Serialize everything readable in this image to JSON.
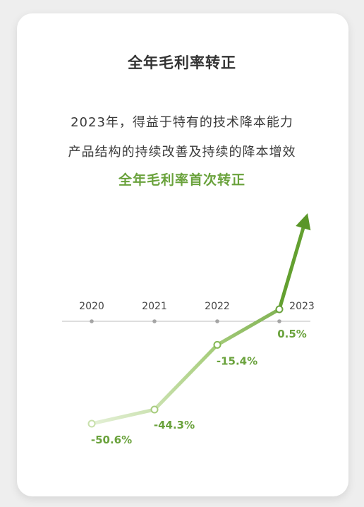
{
  "header": {
    "title": "全年毛利率转正",
    "line1": "2023年，得益于特有的技术降本能力",
    "line2": "产品结构的持续改善及持续的降本增效",
    "highlight": "全年毛利率首次转正"
  },
  "colors": {
    "accent": "#6aa23c",
    "line_light": "#dcebc8",
    "text": "#333333"
  },
  "chart_data": {
    "type": "line",
    "categories": [
      "2020",
      "2021",
      "2022",
      "2023"
    ],
    "values": [
      -50.6,
      -44.3,
      -15.4,
      0.5
    ],
    "value_labels": [
      "-50.6%",
      "-44.3%",
      "-15.4%",
      "0.5%"
    ],
    "title": "",
    "xlabel": "",
    "ylabel": "",
    "ylim": [
      -50.6,
      0.5
    ],
    "grid": false,
    "trend_arrow": true
  }
}
